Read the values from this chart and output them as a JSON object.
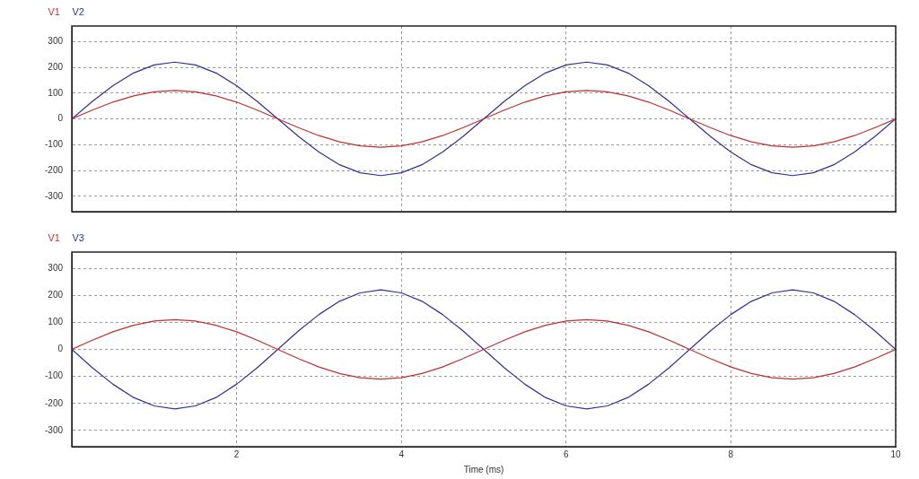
{
  "chart_data": [
    {
      "type": "line",
      "legend": "top left",
      "grid": true,
      "marker": "none",
      "line_style": "solid",
      "tick_labels": "y",
      "x": [
        0,
        0.25,
        0.5,
        0.75,
        1,
        1.25,
        1.5,
        1.75,
        2,
        2.25,
        2.5,
        2.75,
        3,
        3.25,
        3.5,
        3.75,
        4,
        4.25,
        4.5,
        4.75,
        5,
        5.25,
        5.5,
        5.75,
        6,
        6.25,
        6.5,
        6.75,
        7,
        7.25,
        7.5,
        7.75,
        8,
        8.25,
        8.5,
        8.75,
        9,
        9.25,
        9.5,
        9.75,
        10
      ],
      "xlim": [
        0,
        10
      ],
      "xticks": [
        2,
        4,
        6,
        8,
        10
      ],
      "ylim": [
        -360,
        360
      ],
      "yticks": [
        -300,
        -200,
        -100,
        0,
        100,
        200,
        300
      ],
      "series": [
        {
          "name": "V1",
          "color": "#c03030",
          "values": [
            0,
            34,
            65,
            89,
            105,
            110,
            105,
            89,
            65,
            34,
            0,
            -34,
            -65,
            -89,
            -105,
            -110,
            -105,
            -89,
            -65,
            -34,
            0,
            34,
            65,
            89,
            105,
            110,
            105,
            89,
            65,
            34,
            0,
            -34,
            -65,
            -89,
            -105,
            -110,
            -105,
            -89,
            -65,
            -34,
            0
          ]
        },
        {
          "name": "V2",
          "color": "#30309a",
          "values": [
            0,
            68,
            129,
            178,
            209,
            220,
            209,
            178,
            129,
            68,
            0,
            -68,
            -129,
            -178,
            -209,
            -220,
            -209,
            -178,
            -129,
            -68,
            0,
            68,
            129,
            178,
            209,
            220,
            209,
            178,
            129,
            68,
            0,
            -68,
            -129,
            -178,
            -209,
            -220,
            -209,
            -178,
            -129,
            -68,
            0
          ]
        }
      ]
    },
    {
      "type": "line",
      "legend": "top left",
      "grid": true,
      "marker": "none",
      "line_style": "solid",
      "xlabel": "Time (ms)",
      "x": [
        0,
        0.25,
        0.5,
        0.75,
        1,
        1.25,
        1.5,
        1.75,
        2,
        2.25,
        2.5,
        2.75,
        3,
        3.25,
        3.5,
        3.75,
        4,
        4.25,
        4.5,
        4.75,
        5,
        5.25,
        5.5,
        5.75,
        6,
        6.25,
        6.5,
        6.75,
        7,
        7.25,
        7.5,
        7.75,
        8,
        8.25,
        8.5,
        8.75,
        9,
        9.25,
        9.5,
        9.75,
        10
      ],
      "xlim": [
        0,
        10
      ],
      "xticks": [
        2,
        4,
        6,
        8,
        10
      ],
      "ylim": [
        -360,
        360
      ],
      "yticks": [
        -300,
        -200,
        -100,
        0,
        100,
        200,
        300
      ],
      "series": [
        {
          "name": "V1",
          "color": "#c03030",
          "values": [
            0,
            34,
            65,
            89,
            105,
            110,
            105,
            89,
            65,
            34,
            0,
            -34,
            -65,
            -89,
            -105,
            -110,
            -105,
            -89,
            -65,
            -34,
            0,
            34,
            65,
            89,
            105,
            110,
            105,
            89,
            65,
            34,
            0,
            -34,
            -65,
            -89,
            -105,
            -110,
            -105,
            -89,
            -65,
            -34,
            0
          ]
        },
        {
          "name": "V3",
          "color": "#30309a",
          "values": [
            0,
            -68,
            -129,
            -178,
            -209,
            -220,
            -209,
            -178,
            -129,
            -68,
            0,
            68,
            129,
            178,
            209,
            220,
            209,
            178,
            129,
            68,
            0,
            -68,
            -129,
            -178,
            -209,
            -220,
            -209,
            -178,
            -129,
            -68,
            0,
            68,
            129,
            178,
            209,
            220,
            209,
            178,
            129,
            68,
            0
          ]
        }
      ]
    }
  ]
}
